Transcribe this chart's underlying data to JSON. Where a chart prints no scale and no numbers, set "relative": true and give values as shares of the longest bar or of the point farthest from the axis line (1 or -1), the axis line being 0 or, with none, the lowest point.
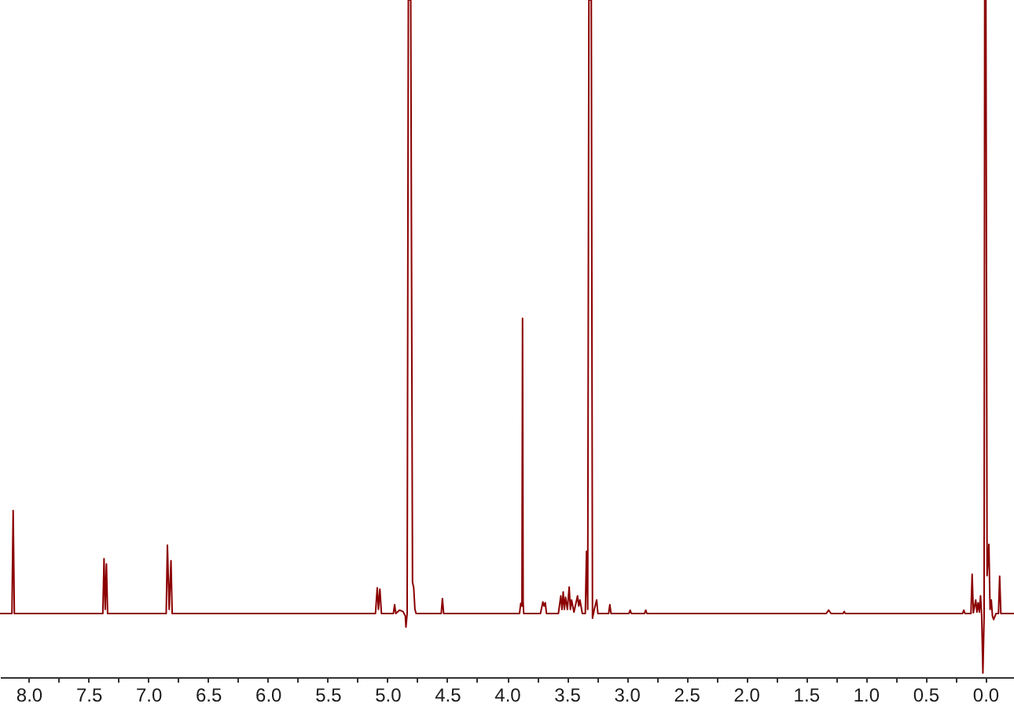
{
  "chart_data": {
    "type": "line",
    "relative": true,
    "xlim": [
      8.24,
      -0.24
    ],
    "xticks": [
      {
        "value": 8,
        "label": "8.0"
      },
      {
        "value": 7.75,
        "label": null
      },
      {
        "value": 7.5,
        "label": "7.5"
      },
      {
        "value": 7.25,
        "label": null
      },
      {
        "value": 7,
        "label": "7.0"
      },
      {
        "value": 6.75,
        "label": null
      },
      {
        "value": 6.5,
        "label": "6.5"
      },
      {
        "value": 6.25,
        "label": null
      },
      {
        "value": 6,
        "label": "6.0"
      },
      {
        "value": 5.75,
        "label": null
      },
      {
        "value": 5.5,
        "label": "5.5"
      },
      {
        "value": 5.25,
        "label": null
      },
      {
        "value": 5,
        "label": "5.0"
      },
      {
        "value": 4.75,
        "label": null
      },
      {
        "value": 4.5,
        "label": "4.5"
      },
      {
        "value": 4.25,
        "label": null
      },
      {
        "value": 4,
        "label": "4.0"
      },
      {
        "value": 3.75,
        "label": null
      },
      {
        "value": 3.5,
        "label": "3.5"
      },
      {
        "value": 3.25,
        "label": null
      },
      {
        "value": 3,
        "label": "3.0"
      },
      {
        "value": 2.75,
        "label": null
      },
      {
        "value": 2.5,
        "label": "2.5"
      },
      {
        "value": 2.25,
        "label": null
      },
      {
        "value": 2,
        "label": "2.0"
      },
      {
        "value": 1.75,
        "label": null
      },
      {
        "value": 1.5,
        "label": "1.5"
      },
      {
        "value": 1.25,
        "label": null
      },
      {
        "value": 1,
        "label": "1.0"
      },
      {
        "value": 0.75,
        "label": null
      },
      {
        "value": 0.5,
        "label": "0.5"
      },
      {
        "value": 0.25,
        "label": null
      },
      {
        "value": 0,
        "label": "0.0"
      }
    ],
    "x": [
      8.24,
      8.14,
      8.13,
      8.12,
      7.38,
      7.37,
      7.36,
      7.35,
      7.34,
      6.85,
      6.84,
      6.825,
      6.81,
      6.8,
      5.1,
      5.085,
      5.075,
      5.063,
      5.05,
      4.95,
      4.94,
      4.93,
      4.9,
      4.87,
      4.85,
      4.845,
      4.835,
      4.825,
      4.805,
      4.79,
      4.78,
      4.77,
      4.76,
      4.55,
      4.54,
      4.53,
      3.895,
      3.885,
      3.875,
      3.87,
      3.865,
      3.86,
      3.72,
      3.7,
      3.69,
      3.68,
      3.67,
      3.57,
      3.55,
      3.54,
      3.53,
      3.52,
      3.51,
      3.495,
      3.48,
      3.47,
      3.46,
      3.44,
      3.41,
      3.4,
      3.39,
      3.37,
      3.345,
      3.335,
      3.325,
      3.315,
      3.295,
      3.285,
      3.27,
      3.25,
      3.24,
      3.15,
      3.14,
      3.13,
      2.98,
      2.97,
      2.96,
      2.85,
      2.84,
      2.83,
      1.33,
      1.31,
      1.29,
      1.19,
      1.18,
      1.17,
      0.19,
      0.18,
      0.17,
      0.12,
      0.11,
      0.1,
      0.08,
      0.07,
      0.06,
      0.05,
      0.04,
      0.03,
      0.02,
      0.01,
      0.005,
      -0.005,
      -0.015,
      -0.03,
      -0.04,
      -0.05,
      -0.06,
      -0.07,
      -0.09,
      -0.11,
      -0.12,
      -0.13,
      -0.24
    ],
    "series": [
      {
        "color": "#8b0000",
        "values": [
          0.094,
          0.094,
          0.246,
          0.094,
          0.094,
          0.175,
          0.1,
          0.167,
          0.094,
          0.094,
          0.195,
          0.1,
          0.172,
          0.094,
          0.094,
          0.132,
          0.1,
          0.13,
          0.094,
          0.094,
          0.107,
          0.094,
          0.099,
          0.097,
          0.09,
          0.074,
          0.094,
          1.0,
          1.0,
          0.14,
          0.132,
          0.1,
          0.094,
          0.094,
          0.116,
          0.094,
          0.094,
          0.109,
          0.105,
          0.53,
          0.11,
          0.094,
          0.094,
          0.111,
          0.105,
          0.11,
          0.094,
          0.094,
          0.12,
          0.1,
          0.126,
          0.1,
          0.118,
          0.1,
          0.133,
          0.1,
          0.114,
          0.096,
          0.12,
          0.105,
          0.114,
          0.094,
          0.094,
          0.186,
          0.1,
          1.0,
          1.0,
          0.087,
          0.1,
          0.114,
          0.094,
          0.094,
          0.107,
          0.094,
          0.094,
          0.099,
          0.094,
          0.094,
          0.099,
          0.094,
          0.094,
          0.099,
          0.094,
          0.094,
          0.097,
          0.094,
          0.094,
          0.099,
          0.094,
          0.094,
          0.152,
          0.095,
          0.114,
          0.096,
          0.11,
          0.096,
          0.12,
          0.09,
          0.006,
          0.09,
          1.0,
          1.0,
          0.15,
          0.196,
          0.1,
          0.114,
          0.09,
          0.085,
          0.094,
          0.094,
          0.149,
          0.094,
          0.094
        ]
      }
    ]
  }
}
